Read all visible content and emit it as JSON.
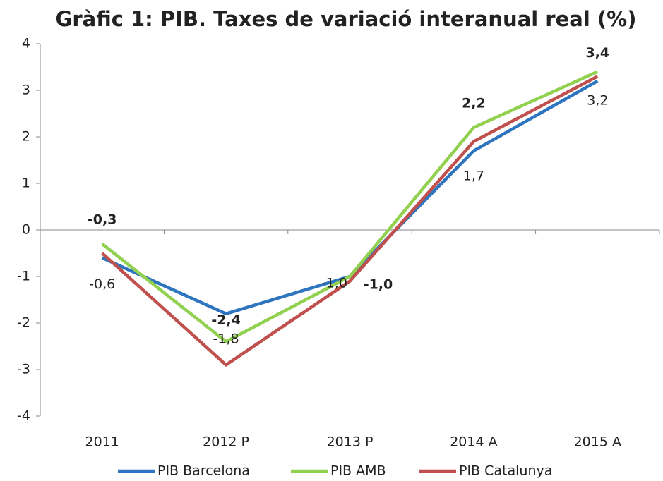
{
  "chart_data": {
    "type": "line",
    "title": "Gràfic 1: PIB. Taxes de variació interanual real (%)",
    "categories": [
      "2011",
      "2012 P",
      "2013 P",
      "2014 A",
      "2015 A"
    ],
    "series": [
      {
        "name": "PIB Barcelona",
        "color": "#2e75c0",
        "values": [
          -0.6,
          -1.8,
          -1.0,
          1.7,
          3.2
        ],
        "value_labels": [
          "-0,6",
          "-1,8",
          "-1,0",
          "1,7",
          "3,2"
        ]
      },
      {
        "name": "PIB AMB",
        "color": "#92d050",
        "values": [
          -0.3,
          -2.4,
          -1.0,
          2.2,
          3.4
        ],
        "value_labels": [
          "-0,3",
          "-2,4",
          "-1,0",
          "2,2",
          "3,4"
        ]
      },
      {
        "name": "PIB Catalunya",
        "color": "#c0504d",
        "values": [
          -0.5,
          -2.9,
          -1.1,
          1.9,
          3.3
        ]
      }
    ],
    "ylim": [
      -4,
      4
    ],
    "yticks": [
      -4,
      -3,
      -2,
      -1,
      0,
      1,
      2,
      3,
      4
    ]
  }
}
